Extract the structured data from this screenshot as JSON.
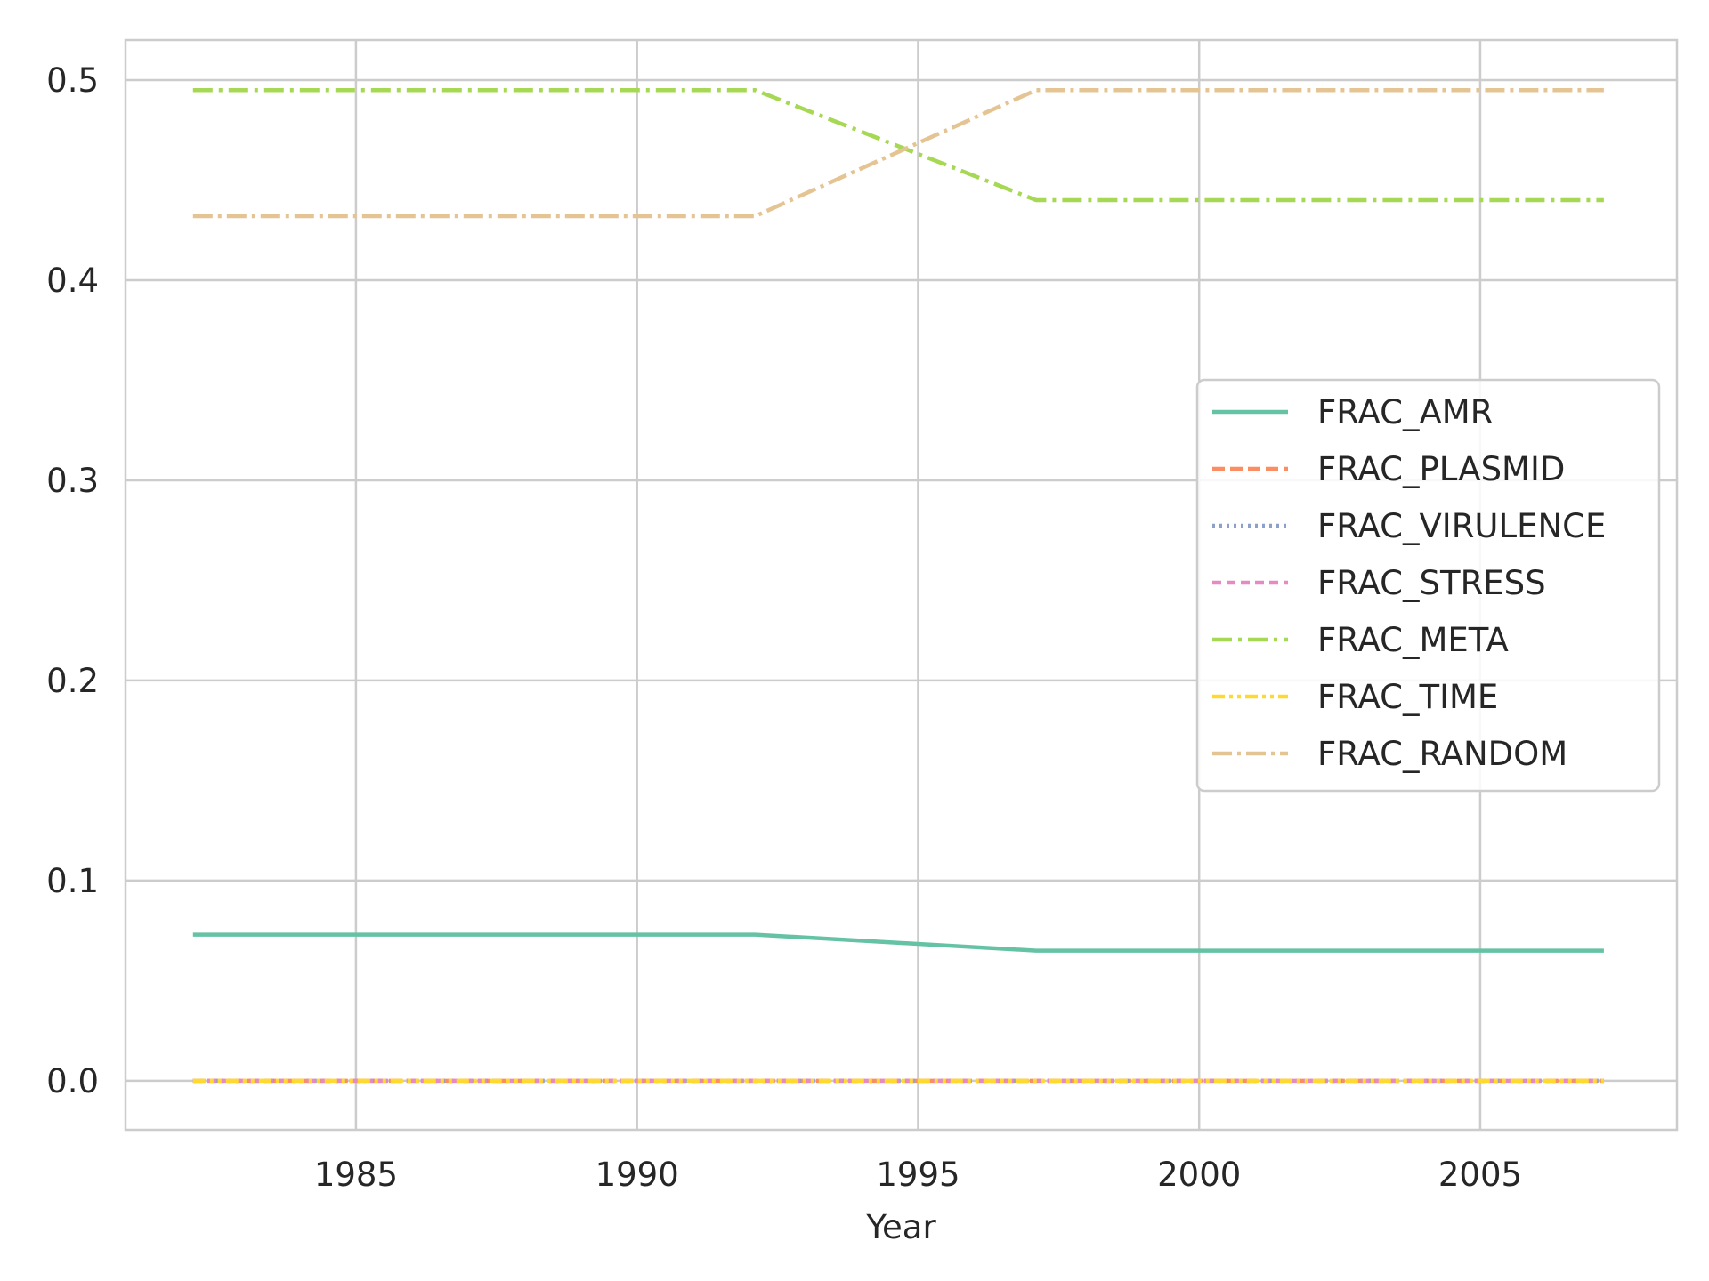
{
  "chart_data": {
    "type": "line",
    "xlabel": "Year",
    "ylabel": "",
    "xlim": [
      1980.9,
      2008.5
    ],
    "ylim": [
      -0.0245,
      0.52
    ],
    "xticks": [
      1985,
      1990,
      1995,
      2000,
      2005
    ],
    "yticks": [
      0.0,
      0.1,
      0.2,
      0.3,
      0.4,
      0.5
    ],
    "xtick_labels": [
      "1985",
      "1990",
      "1995",
      "2000",
      "2005"
    ],
    "ytick_labels": [
      "0.0",
      "0.1",
      "0.2",
      "0.3",
      "0.4",
      "0.5"
    ],
    "grid": true,
    "legend_position": "center-right",
    "x": [
      1982.1,
      1992.1,
      1997.1,
      2007.2
    ],
    "series": [
      {
        "name": "FRAC_AMR",
        "values": [
          0.073,
          0.073,
          0.065,
          0.065
        ],
        "color": "#66c2a5",
        "dash": "solid"
      },
      {
        "name": "FRAC_PLASMID",
        "values": [
          0.0,
          0.0,
          0.0,
          0.0
        ],
        "color": "#fc8d62",
        "dash": "dashed"
      },
      {
        "name": "FRAC_VIRULENCE",
        "values": [
          0.0,
          0.0,
          0.0,
          0.0
        ],
        "color": "#8da0cb",
        "dash": "dotted"
      },
      {
        "name": "FRAC_STRESS",
        "values": [
          0.0,
          0.0,
          0.0,
          0.0
        ],
        "color": "#e78ac3",
        "dash": "dashed-short"
      },
      {
        "name": "FRAC_META",
        "values": [
          0.495,
          0.495,
          0.44,
          0.44
        ],
        "color": "#a6d854",
        "dash": "dashdot"
      },
      {
        "name": "FRAC_TIME",
        "values": [
          0.0,
          0.0,
          0.0,
          0.0
        ],
        "color": "#ffd92f",
        "dash": "dashdotdot"
      },
      {
        "name": "FRAC_RANDOM",
        "values": [
          0.432,
          0.432,
          0.495,
          0.495
        ],
        "color": "#e5c494",
        "dash": "dashdot-long"
      }
    ]
  }
}
